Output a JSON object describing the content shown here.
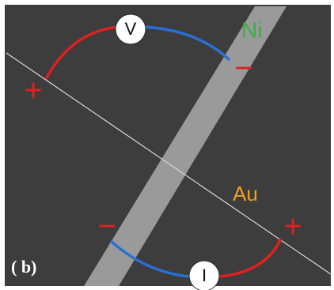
{
  "panel_label": "( b)",
  "materials": [
    {
      "label": "Ni"
    },
    {
      "label": "Au"
    }
  ],
  "meters": [
    {
      "label": "V",
      "plus": "+",
      "minus": "−"
    },
    {
      "label": "I",
      "plus": "+",
      "minus": "−"
    }
  ]
}
